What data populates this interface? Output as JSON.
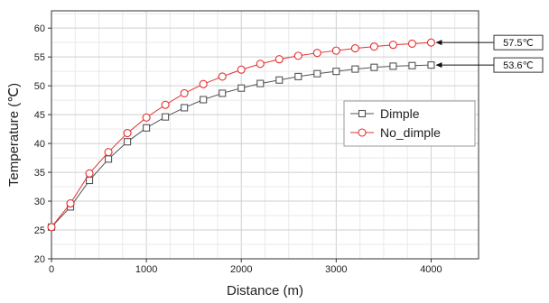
{
  "chart_data": {
    "type": "line",
    "xlabel": "Distance (m)",
    "ylabel": "Temperature (℃)",
    "xlim": [
      0,
      4500
    ],
    "ylim": [
      20,
      63
    ],
    "xticks": [
      0,
      1000,
      2000,
      3000,
      4000
    ],
    "yticks": [
      20,
      25,
      30,
      35,
      40,
      45,
      50,
      55,
      60
    ],
    "grid": true,
    "legend_position": "center-right",
    "x": [
      0,
      200,
      400,
      600,
      800,
      1000,
      1200,
      1400,
      1600,
      1800,
      2000,
      2200,
      2400,
      2600,
      2800,
      3000,
      3200,
      3400,
      3600,
      3800,
      4000
    ],
    "series": [
      {
        "name": "Dimple",
        "color": "#555555",
        "marker": "square",
        "values": [
          25.5,
          29.0,
          33.6,
          37.3,
          40.3,
          42.7,
          44.6,
          46.2,
          47.6,
          48.7,
          49.6,
          50.4,
          51.0,
          51.6,
          52.1,
          52.5,
          52.9,
          53.2,
          53.4,
          53.5,
          53.6
        ]
      },
      {
        "name": "No_dimple",
        "color": "#e53030",
        "marker": "circle",
        "values": [
          25.5,
          29.6,
          34.8,
          38.5,
          41.8,
          44.5,
          46.7,
          48.7,
          50.3,
          51.6,
          52.8,
          53.8,
          54.6,
          55.2,
          55.7,
          56.1,
          56.5,
          56.8,
          57.1,
          57.3,
          57.5
        ]
      }
    ],
    "annotations": [
      {
        "text": "57.5℃",
        "series": 1,
        "x": 4000,
        "y": 57.5
      },
      {
        "text": "53.6℃",
        "series": 0,
        "x": 4000,
        "y": 53.6
      }
    ]
  }
}
